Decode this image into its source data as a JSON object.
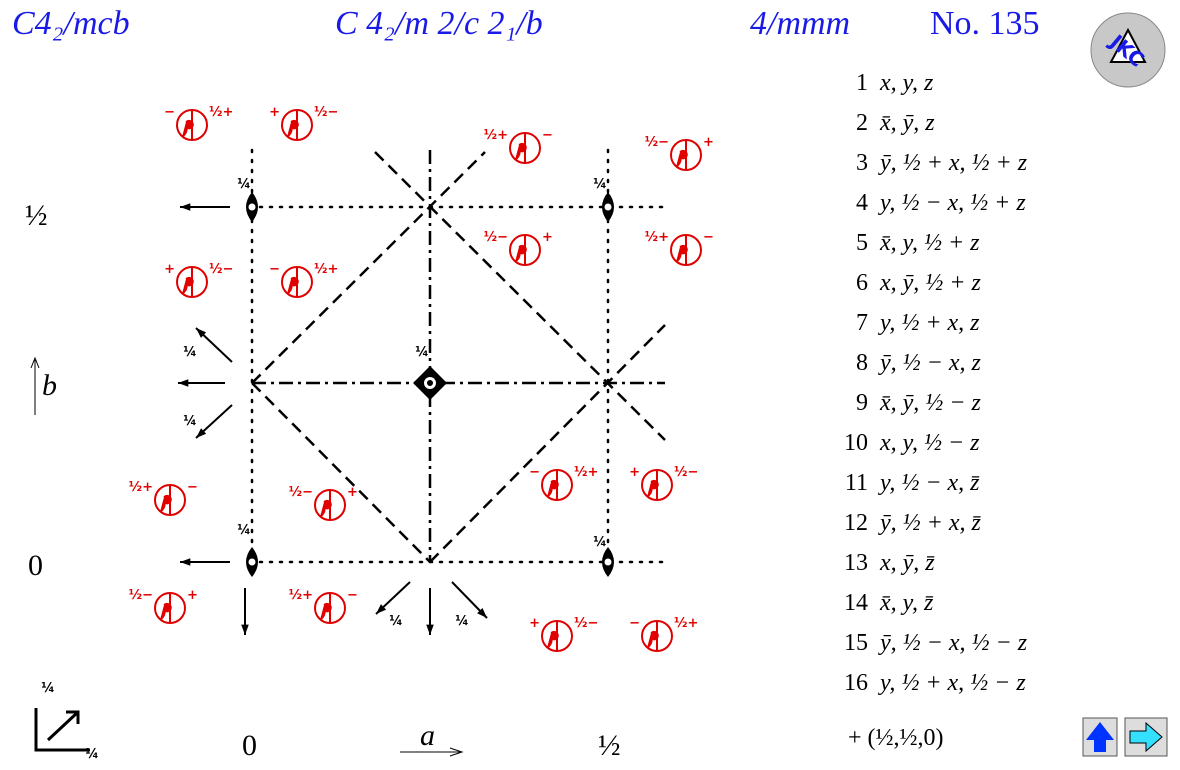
{
  "header": {
    "short_symbol": "C4₂/mcb",
    "full_symbol": "C 4₂/m 2/c 2₁/b",
    "point_group": "4/mmm",
    "number": "No. 135"
  },
  "logo": "JKC",
  "axes": {
    "b_half": "½",
    "b_label": "b",
    "b_zero": "0",
    "a_zero": "0",
    "a_label": "a",
    "a_half": "½"
  },
  "equivalent_positions": [
    {
      "left": "−",
      "right": "½+"
    },
    {
      "left": "+",
      "right": "½−"
    },
    {
      "left": "½+",
      "right": "−"
    },
    {
      "left": "½−",
      "right": "+"
    },
    {
      "left": "½−",
      "right": "+"
    },
    {
      "left": "½+",
      "right": "−"
    },
    {
      "left": "+",
      "right": "½−"
    },
    {
      "left": "−",
      "right": "½+"
    },
    {
      "left": "½+",
      "right": "−"
    },
    {
      "left": "½−",
      "right": "+"
    },
    {
      "left": "−",
      "right": "½+"
    },
    {
      "left": "+",
      "right": "½−"
    },
    {
      "left": "½−",
      "right": "+"
    },
    {
      "left": "½+",
      "right": "−"
    },
    {
      "left": "+",
      "right": "½−"
    },
    {
      "left": "−",
      "right": "½+"
    }
  ],
  "height_labels": [
    "¼",
    "¼",
    "¼",
    "¼",
    "¼",
    "¼",
    "¼",
    "¼",
    "¼",
    "¼",
    "¼"
  ],
  "operations": [
    {
      "n": "1",
      "op": "x, y, z"
    },
    {
      "n": "2",
      "op": "x̄, ȳ, z"
    },
    {
      "n": "3",
      "op": "ȳ, ½ + x, ½ + z"
    },
    {
      "n": "4",
      "op": "y, ½ − x, ½ + z"
    },
    {
      "n": "5",
      "op": "x̄, y, ½ + z"
    },
    {
      "n": "6",
      "op": "x, ȳ, ½ + z"
    },
    {
      "n": "7",
      "op": "y, ½ + x, z"
    },
    {
      "n": "8",
      "op": "ȳ, ½ − x, z"
    },
    {
      "n": "9",
      "op": "x̄, ȳ, ½ − z"
    },
    {
      "n": "10",
      "op": "x, y, ½ − z"
    },
    {
      "n": "11",
      "op": "y, ½ − x, z̄"
    },
    {
      "n": "12",
      "op": "ȳ, ½ + x, z̄"
    },
    {
      "n": "13",
      "op": "x, ȳ, z̄"
    },
    {
      "n": "14",
      "op": "x̄, y, z̄"
    },
    {
      "n": "15",
      "op": "ȳ, ½ − x, ½ − z"
    },
    {
      "n": "16",
      "op": "y, ½ + x, ½ − z"
    }
  ],
  "centering": "+ (½,½,0)"
}
